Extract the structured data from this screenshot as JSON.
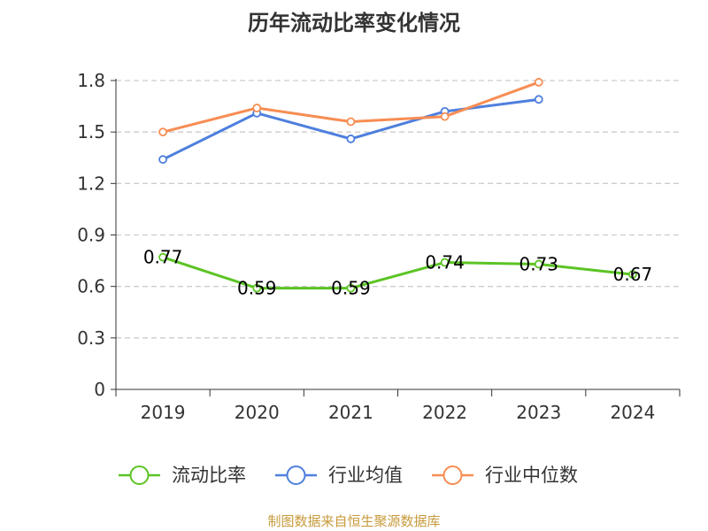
{
  "title": "历年流动比率变化情况",
  "source": "制图数据来自恒生聚源数据库",
  "chart_data": {
    "type": "line",
    "title": "历年流动比率变化情况",
    "categories": [
      "2019",
      "2020",
      "2021",
      "2022",
      "2023",
      "2024"
    ],
    "ylim": [
      0,
      1.8
    ],
    "yticks": [
      0,
      0.3,
      0.6,
      0.9,
      1.2,
      1.5,
      1.8
    ],
    "ytick_labels": [
      "0",
      "0.3",
      "0.6",
      "0.9",
      "1.2",
      "1.5",
      "1.8"
    ],
    "grid": true,
    "legend_position": "bottom",
    "series": [
      {
        "name": "流动比率",
        "color": "#5bc424",
        "values": [
          0.77,
          0.59,
          0.59,
          0.74,
          0.73,
          0.67
        ],
        "labels": [
          "0.77",
          "0.59",
          "0.59",
          "0.74",
          "0.73",
          "0.67"
        ]
      },
      {
        "name": "行业均值",
        "color": "#4e7fde",
        "values": [
          1.34,
          1.61,
          1.46,
          1.62,
          1.69,
          null
        ]
      },
      {
        "name": "行业中位数",
        "color": "#f78d53",
        "values": [
          1.5,
          1.64,
          1.56,
          1.59,
          1.79,
          null
        ]
      }
    ]
  }
}
